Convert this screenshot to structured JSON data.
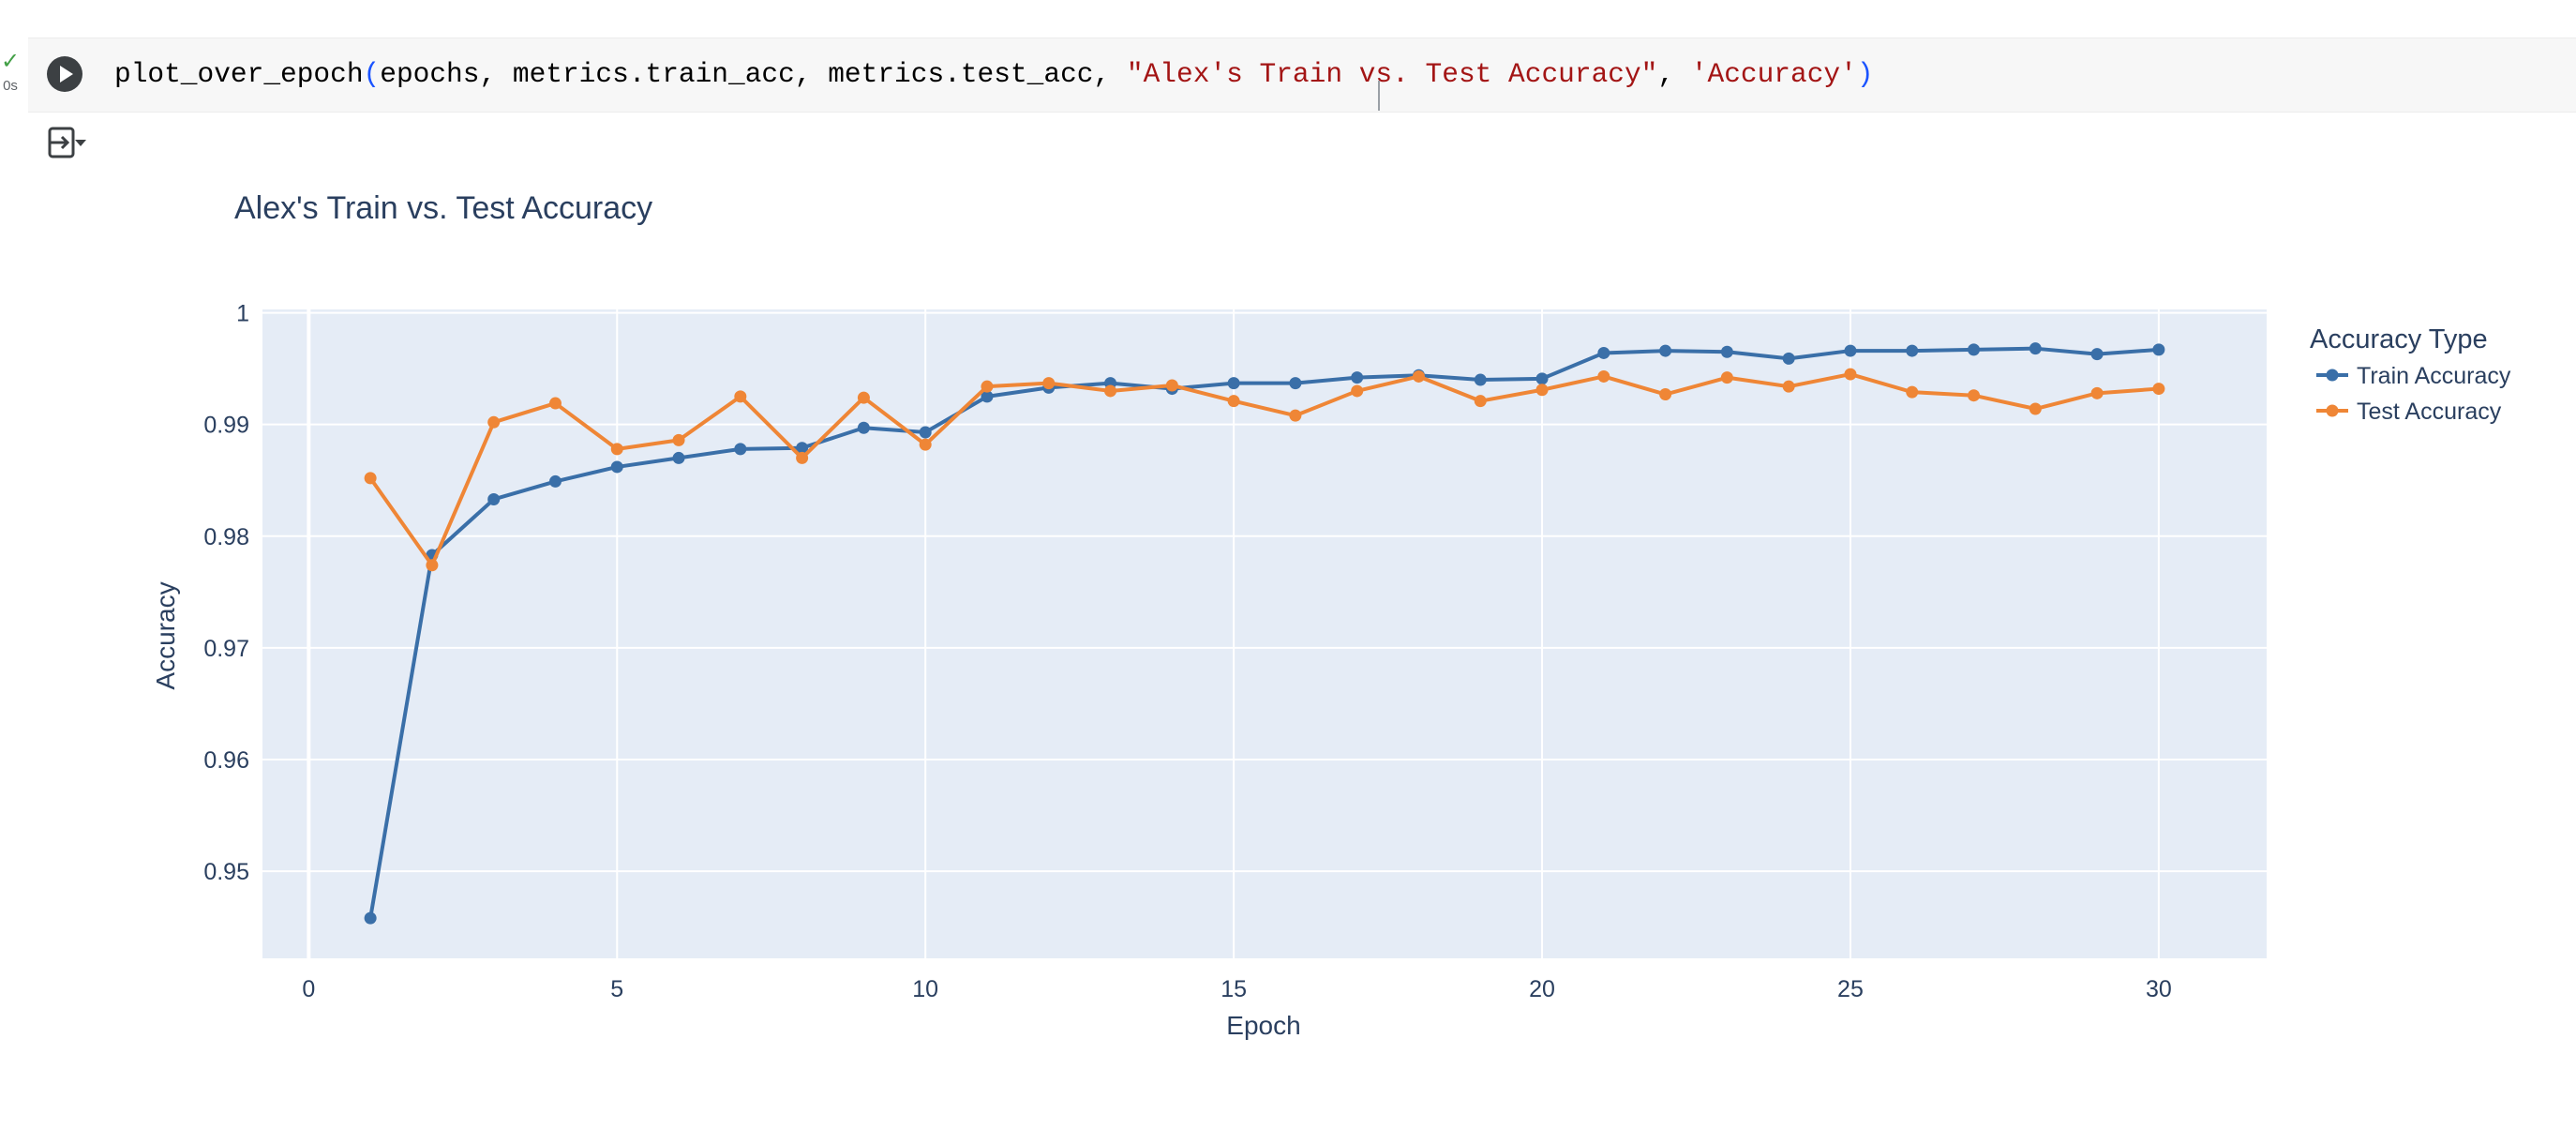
{
  "cell": {
    "status_icon": "check-icon",
    "status_time": "0s",
    "code_fn": "plot_over_epoch",
    "code_open": "(",
    "code_args": "epochs, metrics.train_acc, metrics.test_acc, ",
    "code_str1": "\"Alex's Train vs. Test Accuracy\"",
    "code_sep": ", ",
    "code_str2": "'Accuracy'",
    "code_close": ")",
    "run_icon": "play-icon",
    "output_icon": "output-toggle-icon"
  },
  "chart_data": {
    "type": "line",
    "title": "Alex's Train vs. Test Accuracy",
    "xlabel": "Epoch",
    "ylabel": "Accuracy",
    "xlim": [
      -0.75,
      31.75
    ],
    "ylim": [
      0.9422,
      1.0003
    ],
    "xticks": [
      0,
      5,
      10,
      15,
      20,
      25,
      30
    ],
    "yticks": [
      0.95,
      0.96,
      0.97,
      0.98,
      0.99,
      1
    ],
    "ytick_labels": [
      "0.95",
      "0.96",
      "0.97",
      "0.98",
      "0.99",
      "1"
    ],
    "grid": true,
    "legend_title": "Accuracy Type",
    "legend_position": "top-right",
    "x": [
      1,
      2,
      3,
      4,
      5,
      6,
      7,
      8,
      9,
      10,
      11,
      12,
      13,
      14,
      15,
      16,
      17,
      18,
      19,
      20,
      21,
      22,
      23,
      24,
      25,
      26,
      27,
      28,
      29,
      30
    ],
    "series": [
      {
        "name": "Train Accuracy",
        "color": "#3a6fa8",
        "values": [
          0.9458,
          0.9783,
          0.9833,
          0.9849,
          0.9862,
          0.987,
          0.9878,
          0.9879,
          0.9897,
          0.9893,
          0.9925,
          0.9933,
          0.9937,
          0.9932,
          0.9937,
          0.9937,
          0.9942,
          0.9944,
          0.994,
          0.9941,
          0.9964,
          0.9966,
          0.9965,
          0.9959,
          0.9966,
          0.9966,
          0.9967,
          0.9968,
          0.9963,
          0.9967
        ]
      },
      {
        "name": "Test Accuracy",
        "color": "#ef8636",
        "values": [
          0.9852,
          0.9774,
          0.9902,
          0.9919,
          0.9878,
          0.9886,
          0.9925,
          0.987,
          0.9924,
          0.9882,
          0.9934,
          0.9937,
          0.993,
          0.9935,
          0.9921,
          0.9908,
          0.993,
          0.9943,
          0.9921,
          0.9931,
          0.9943,
          0.9927,
          0.9942,
          0.9934,
          0.9945,
          0.9929,
          0.9926,
          0.9914,
          0.9928,
          0.9932
        ]
      }
    ]
  }
}
